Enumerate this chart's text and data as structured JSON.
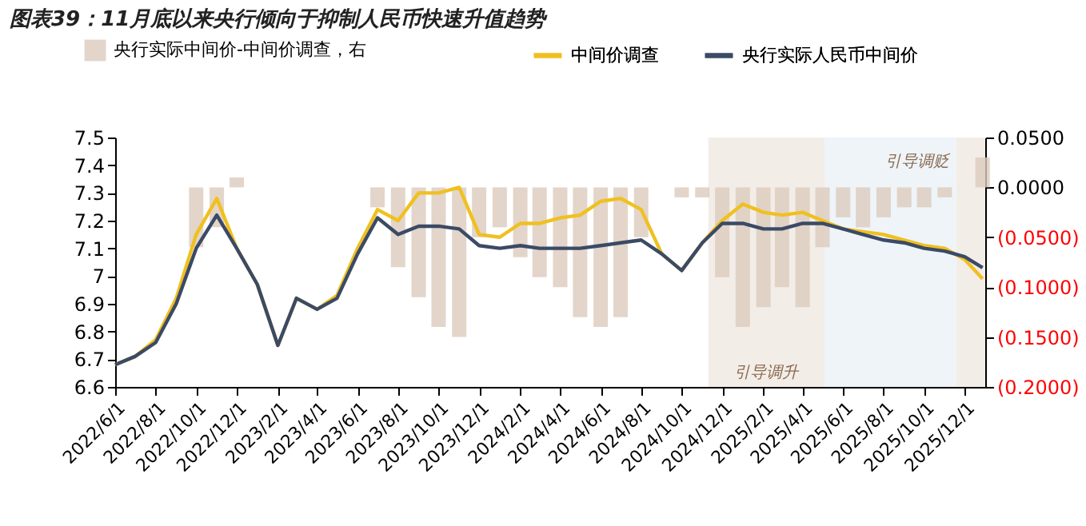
{
  "chart_data": {
    "type": "line",
    "title": "图表39：11月底以来央行倾向于抑制人民币快速升值趋势",
    "x": [
      "2022-06-01",
      "2022-07-01",
      "2022-08-01",
      "2022-09-01",
      "2022-10-01",
      "2022-11-01",
      "2022-12-01",
      "2023-01-01",
      "2023-02-01",
      "2023-03-01",
      "2023-04-01",
      "2023-05-01",
      "2023-06-01",
      "2023-07-01",
      "2023-08-01",
      "2023-09-01",
      "2023-10-01",
      "2023-11-01",
      "2023-12-01",
      "2024-01-01",
      "2024-02-01",
      "2024-03-01",
      "2024-04-01",
      "2024-05-01",
      "2024-06-01",
      "2024-07-01",
      "2024-08-01",
      "2024-09-01",
      "2024-10-01",
      "2024-11-01",
      "2024-12-01",
      "2025-01-01",
      "2025-02-01",
      "2025-03-01",
      "2025-04-01",
      "2025-05-01",
      "2025-06-01",
      "2025-07-01",
      "2025-08-01",
      "2025-09-01",
      "2025-10-01",
      "2025-11-01",
      "2025-12-01",
      "2025-12-28"
    ],
    "series": [
      {
        "name": "央行实际中间价-中间价调查，右",
        "type": "bar",
        "axis": "y2",
        "color": "#dccbbd",
        "values": [
          0,
          0,
          0,
          0,
          -0.06,
          -0.04,
          0.01,
          0,
          0,
          0,
          0,
          0,
          0,
          -0.02,
          -0.08,
          -0.11,
          -0.14,
          -0.15,
          -0.05,
          -0.04,
          -0.07,
          -0.09,
          -0.1,
          -0.13,
          -0.14,
          -0.13,
          -0.05,
          0,
          -0.01,
          -0.01,
          -0.09,
          -0.14,
          -0.12,
          -0.1,
          -0.12,
          -0.06,
          -0.03,
          -0.04,
          -0.03,
          -0.02,
          -0.02,
          -0.01,
          0,
          0.03
        ]
      },
      {
        "name": "中间价调查",
        "type": "line",
        "color": "#f0c020",
        "values": [
          6.68,
          6.71,
          6.77,
          6.92,
          7.15,
          7.28,
          7.1,
          6.97,
          6.75,
          6.92,
          6.88,
          6.93,
          7.1,
          7.24,
          7.2,
          7.3,
          7.3,
          7.32,
          7.15,
          7.14,
          7.19,
          7.19,
          7.21,
          7.22,
          7.27,
          7.28,
          7.24,
          7.08,
          7.02,
          7.12,
          7.2,
          7.26,
          7.23,
          7.22,
          7.23,
          7.2,
          7.17,
          7.16,
          7.15,
          7.13,
          7.11,
          7.1,
          7.06,
          6.99
        ]
      },
      {
        "name": "央行实际人民币中间价",
        "type": "line",
        "color": "#3b4a66",
        "values": [
          6.68,
          6.71,
          6.76,
          6.9,
          7.1,
          7.22,
          7.1,
          6.97,
          6.75,
          6.92,
          6.88,
          6.92,
          7.08,
          7.21,
          7.15,
          7.18,
          7.18,
          7.17,
          7.11,
          7.1,
          7.11,
          7.1,
          7.1,
          7.1,
          7.11,
          7.12,
          7.13,
          7.08,
          7.02,
          7.12,
          7.19,
          7.19,
          7.17,
          7.17,
          7.19,
          7.19,
          7.17,
          7.15,
          7.13,
          7.12,
          7.1,
          7.09,
          7.07,
          7.03
        ]
      }
    ],
    "xlim": [
      "2022-06-01",
      "2026-01-01"
    ],
    "xticks": [
      {
        "value": "2022-06-01",
        "label": "2022/6/1"
      },
      {
        "value": "2022-08-01",
        "label": "2022/8/1"
      },
      {
        "value": "2022-10-01",
        "label": "2022/10/1"
      },
      {
        "value": "2022-12-01",
        "label": "2022/12/1"
      },
      {
        "value": "2023-02-01",
        "label": "2023/2/1"
      },
      {
        "value": "2023-04-01",
        "label": "2023/4/1"
      },
      {
        "value": "2023-06-01",
        "label": "2023/6/1"
      },
      {
        "value": "2023-08-01",
        "label": "2023/8/1"
      },
      {
        "value": "2023-10-01",
        "label": "2023/10/1"
      },
      {
        "value": "2023-12-01",
        "label": "2023/12/1"
      },
      {
        "value": "2024-02-01",
        "label": "2024/2/1"
      },
      {
        "value": "2024-04-01",
        "label": "2024/4/1"
      },
      {
        "value": "2024-06-01",
        "label": "2024/6/1"
      },
      {
        "value": "2024-08-01",
        "label": "2024/8/1"
      },
      {
        "value": "2024-10-01",
        "label": "2024/10/1"
      },
      {
        "value": "2024-12-01",
        "label": "2024/12/1"
      },
      {
        "value": "2025-02-01",
        "label": "2025/2/1"
      },
      {
        "value": "2025-04-01",
        "label": "2025/4/1"
      },
      {
        "value": "2025-06-01",
        "label": "2025/6/1"
      },
      {
        "value": "2025-08-01",
        "label": "2025/8/1"
      },
      {
        "value": "2025-10-01",
        "label": "2025/10/1"
      },
      {
        "value": "2025-12-01",
        "label": "2025/12/1"
      }
    ],
    "ylim": [
      6.6,
      7.5
    ],
    "yticks": [
      6.6,
      6.7,
      6.8,
      6.9,
      7,
      7.1,
      7.2,
      7.3,
      7.4,
      7.5
    ],
    "y2lim": [
      -0.2,
      0.05
    ],
    "y2ticks": [
      {
        "value": -0.2,
        "label": "(0.2000)"
      },
      {
        "value": -0.15,
        "label": "(0.1500)"
      },
      {
        "value": -0.1,
        "label": "(0.1000)"
      },
      {
        "value": -0.05,
        "label": "(0.0500)"
      },
      {
        "value": 0,
        "label": "0.0000"
      },
      {
        "value": 0.05,
        "label": "0.0500"
      }
    ],
    "bands": [
      {
        "axis": "x",
        "from": "2024-11-10",
        "to": "2025-05-04",
        "label": "引导调升",
        "color": "#f3ede8"
      },
      {
        "axis": "x",
        "from": "2025-05-04",
        "to": "2025-11-18",
        "color": "#eef4f8"
      },
      {
        "axis": "x",
        "from": "2025-11-18",
        "to": "2026-01-01",
        "label": "引导调贬",
        "color": "#f3ede8"
      }
    ],
    "grid": false,
    "legend": "top",
    "line_style": "solid",
    "marker": "none"
  }
}
